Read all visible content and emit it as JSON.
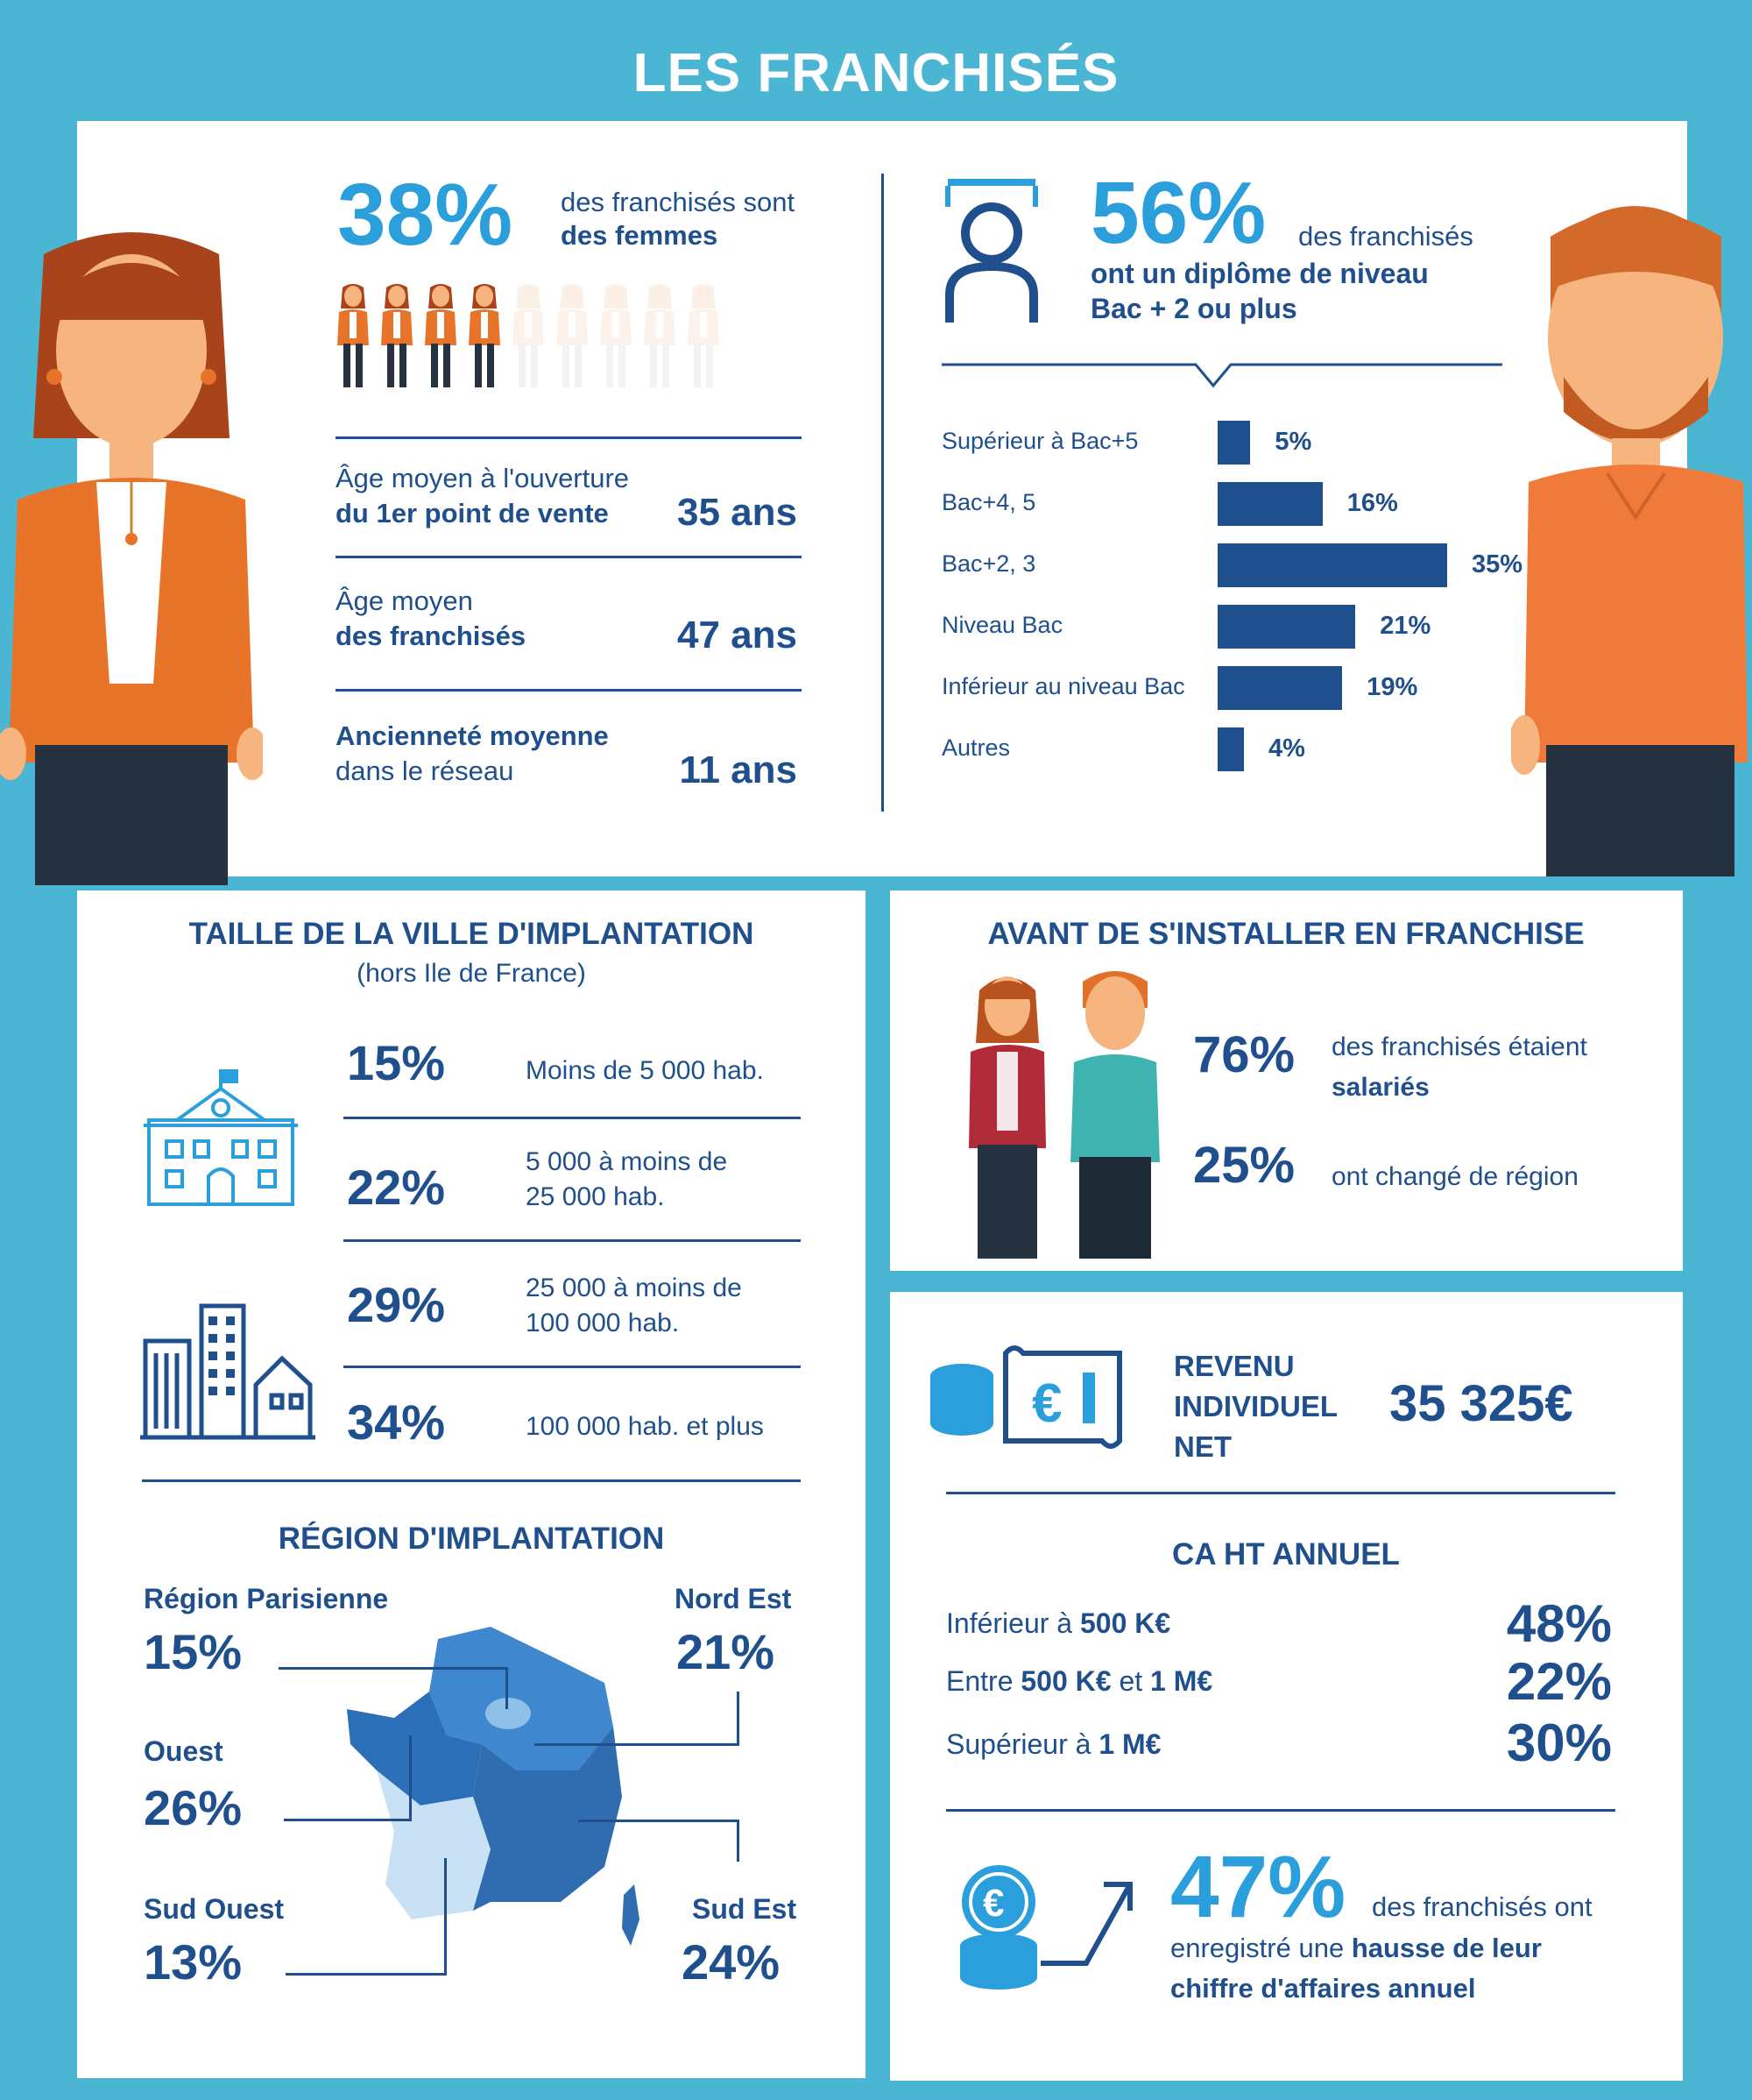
{
  "page_title": "LES FRANCHISÉS",
  "colors": {
    "background": "#4bb6d4",
    "navy": "#1f4f8c",
    "accent_blue": "#2b9fdb",
    "orange": "#e8742a"
  },
  "women": {
    "percent": "38%",
    "text_line1": "des franchisés sont",
    "text_line2": "des femmes",
    "figures_total": 9,
    "figures_highlighted": 4
  },
  "ages": [
    {
      "label_line1": "Âge moyen à l'ouverture",
      "label_line2": "du 1er point de vente",
      "value": "35 ans"
    },
    {
      "label_line1": "Âge moyen",
      "label_line2": "des franchisés",
      "value": "47 ans"
    },
    {
      "label_line1": "Ancienneté moyenne",
      "label_line2": "dans le réseau",
      "value": "11 ans"
    }
  ],
  "diploma": {
    "percent": "56%",
    "text_line1": "des franchisés",
    "text_line2": "ont un diplôme de niveau",
    "text_line3": "Bac + 2 ou plus"
  },
  "chart_data": {
    "type": "bar",
    "orientation": "horizontal",
    "categories": [
      "Supérieur à Bac+5",
      "Bac+4, 5",
      "Bac+2, 3",
      "Niveau Bac",
      "Inférieur au niveau Bac",
      "Autres"
    ],
    "values": [
      5,
      16,
      35,
      21,
      19,
      4
    ],
    "value_labels": [
      "5%",
      "16%",
      "35%",
      "21%",
      "19%",
      "4%"
    ],
    "xlim": [
      0,
      35
    ],
    "color": "#1f4f8c",
    "grid": false
  },
  "city_size": {
    "title": "TAILLE DE LA VILLE D'IMPLANTATION",
    "subtitle": "(hors Ile de France)",
    "rows": [
      {
        "percent": "15%",
        "desc_line1": "Moins de 5 000 hab.",
        "desc_line2": ""
      },
      {
        "percent": "22%",
        "desc_line1": "5 000 à moins de",
        "desc_line2": "25 000 hab."
      },
      {
        "percent": "29%",
        "desc_line1": "25 000 à moins de",
        "desc_line2": "100 000 hab."
      },
      {
        "percent": "34%",
        "desc_line1": "100 000 hab. et plus",
        "desc_line2": ""
      }
    ],
    "icons": [
      "town-hall-icon",
      "city-buildings-icon"
    ]
  },
  "region": {
    "title": "RÉGION D'IMPLANTATION",
    "items": [
      {
        "name": "Région Parisienne",
        "value": "15%"
      },
      {
        "name": "Nord Est",
        "value": "21%"
      },
      {
        "name": "Ouest",
        "value": "26%"
      },
      {
        "name": "Sud Ouest",
        "value": "13%"
      },
      {
        "name": "Sud Est",
        "value": "24%"
      }
    ],
    "icon": "france-map-icon"
  },
  "before": {
    "title": "AVANT DE S'INSTALLER EN FRANCHISE",
    "salaried_percent": "76%",
    "salaried_line1": "des franchisés étaient",
    "salaried_line2": "salariés",
    "moved_percent": "25%",
    "moved_text": "ont changé de région"
  },
  "income": {
    "label_line1": "REVENU",
    "label_line2": "INDIVIDUEL",
    "label_line3": "NET",
    "value": "35 325€",
    "icon": "euro-coins-banknote-icon"
  },
  "revenue": {
    "title": "CA HT ANNUEL",
    "rows": [
      {
        "pre": "Inférieur à ",
        "bold": "500 K€",
        "mid": "",
        "bold2": "",
        "value": "48%"
      },
      {
        "pre": "Entre ",
        "bold": "500 K€",
        "mid": " et ",
        "bold2": "1 M€",
        "value": "22%"
      },
      {
        "pre": "Supérieur à ",
        "bold": "1 M€",
        "mid": "",
        "bold2": "",
        "value": "30%"
      }
    ]
  },
  "growth": {
    "percent": "47%",
    "line1": "des franchisés ont",
    "line2_pre": "enregistré une ",
    "line2_bold": "hausse de leur",
    "line3": "chiffre d'affaires annuel",
    "icon": "coins-growth-arrow-icon"
  }
}
